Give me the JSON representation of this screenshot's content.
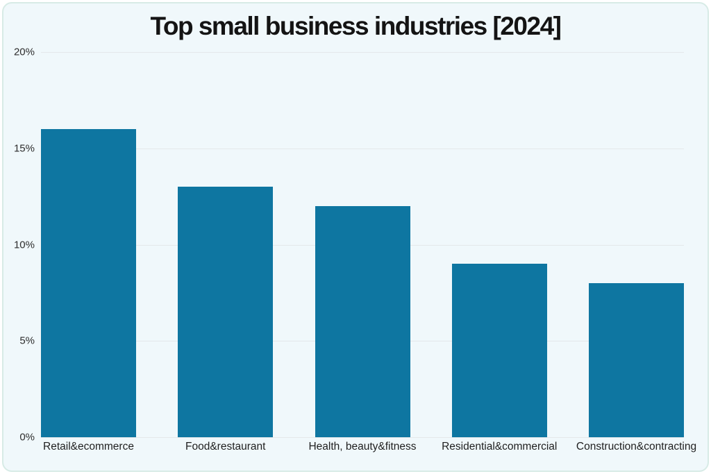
{
  "page": {
    "outer_background": "#ffffff"
  },
  "card": {
    "background": "#f0f8fb",
    "border_color": "#d7ebe6"
  },
  "chart_data": {
    "type": "bar",
    "title": "Top small business industries [2024]",
    "categories": [
      "Retail&ecommerce",
      "Food&restaurant",
      "Health, beauty&fitness",
      "Residential&commercial",
      "Construction&contracting"
    ],
    "values": [
      16,
      13,
      12,
      9,
      8
    ],
    "unit": "%",
    "bar_color": "#0e76a1",
    "xlabel": "",
    "ylabel": "",
    "ylim": [
      0,
      20
    ],
    "yticks": [
      0,
      5,
      10,
      15,
      20
    ],
    "ytick_labels": [
      "0%",
      "5%",
      "10%",
      "15%",
      "20%"
    ],
    "grid": "horizontal",
    "gridline_color": "#e4e8ea",
    "legend": "none"
  }
}
